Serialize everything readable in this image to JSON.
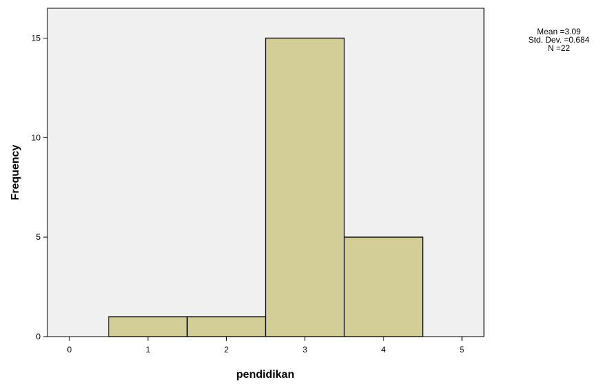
{
  "chart_data": {
    "type": "bar",
    "subtype": "histogram",
    "xlabel": "pendidikan",
    "ylabel": "Frequency",
    "bins": [
      {
        "from": 0.5,
        "to": 1.5,
        "value": 1
      },
      {
        "from": 1.5,
        "to": 2.5,
        "value": 1
      },
      {
        "from": 2.5,
        "to": 3.5,
        "value": 15
      },
      {
        "from": 3.5,
        "to": 4.5,
        "value": 5
      }
    ],
    "xlim": [
      -0.28,
      5.28
    ],
    "ylim": [
      0,
      16.5
    ],
    "xticks": [
      0,
      1,
      2,
      3,
      4,
      5
    ],
    "yticks": [
      0,
      5,
      10,
      15
    ],
    "grid": false,
    "bar_color": "#D3CE97",
    "bar_edge_color": "#000000",
    "plot_background": "#F0F0F0",
    "stats": {
      "mean": "Mean =3.09",
      "std_dev": "Std. Dev. =0.684",
      "n": "N =22"
    }
  }
}
